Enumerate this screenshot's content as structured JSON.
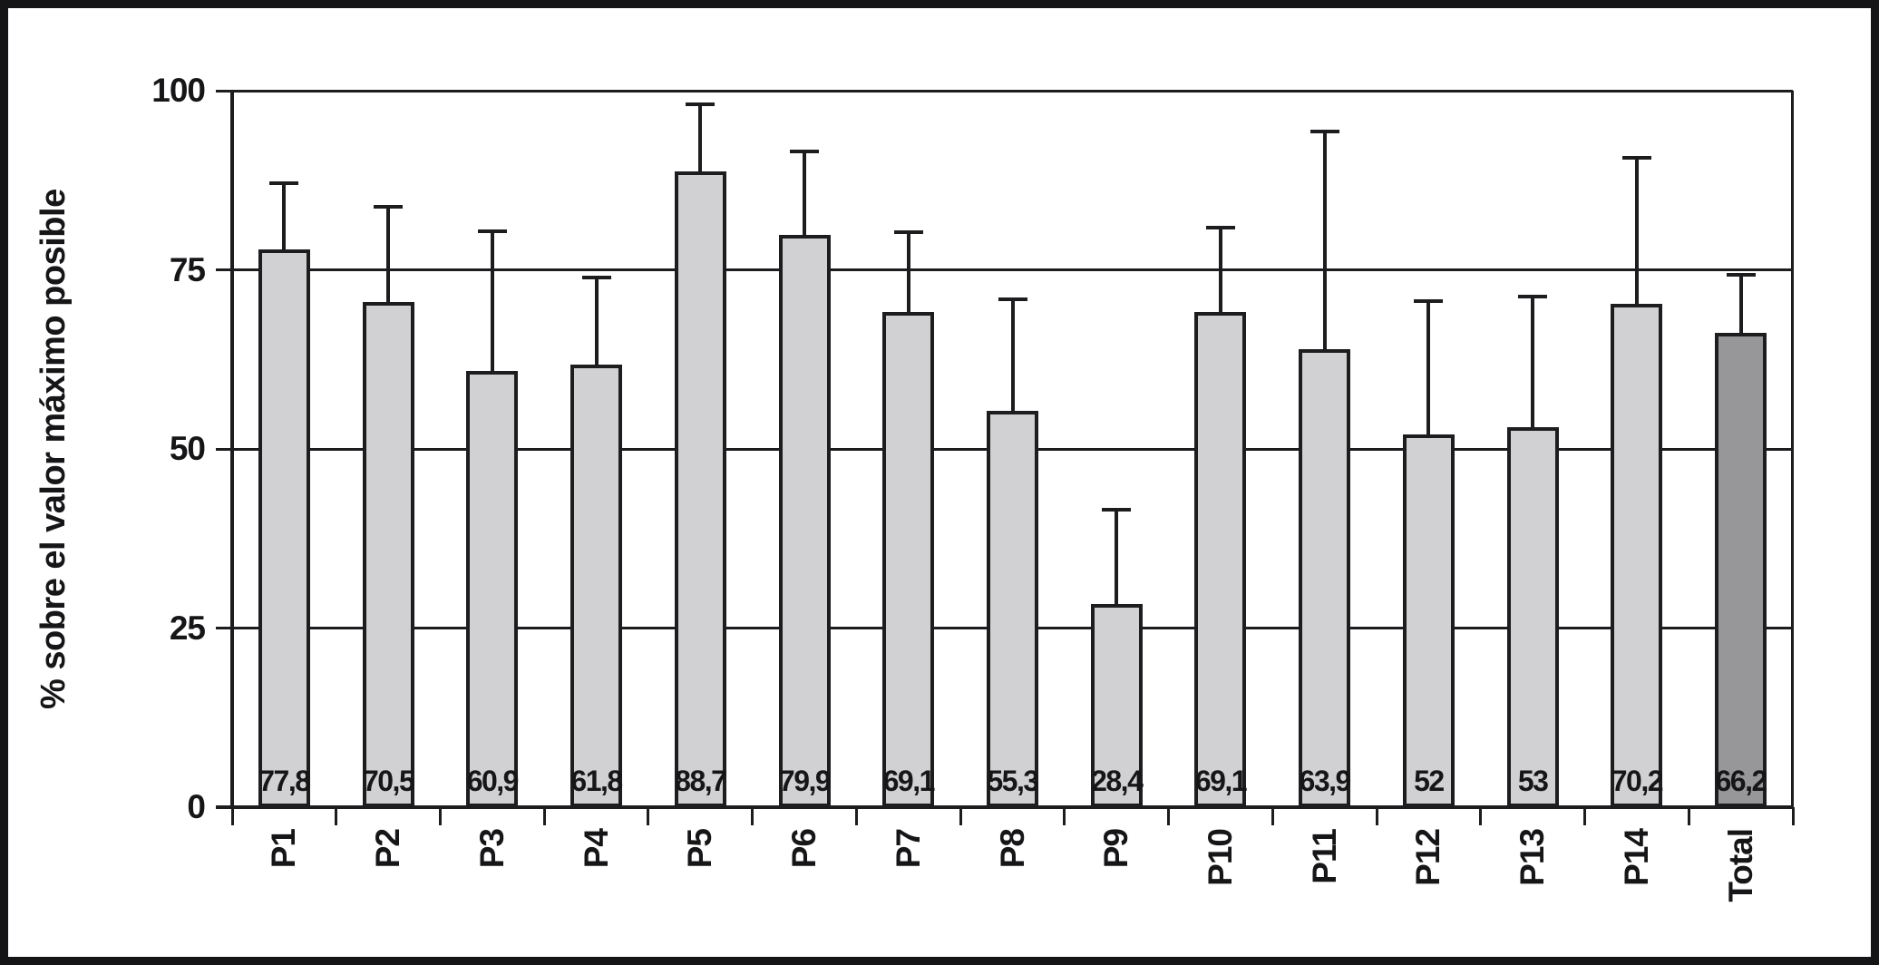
{
  "chart_data": {
    "type": "bar",
    "title": "",
    "xlabel": "",
    "ylabel": "% sobre el valor máximo posible",
    "ylim": [
      0,
      100
    ],
    "yticks": [
      0,
      25,
      50,
      75,
      100
    ],
    "ytick_labels": [
      "0",
      "25",
      "50",
      "75",
      "100"
    ],
    "grid": true,
    "legend": "none",
    "categories": [
      "P1",
      "P2",
      "P3",
      "P4",
      "P5",
      "P6",
      "P7",
      "P8",
      "P9",
      "P10",
      "P11",
      "P12",
      "P13",
      "P14",
      "Total"
    ],
    "values": [
      77.8,
      70.5,
      60.9,
      61.8,
      88.7,
      79.9,
      69.1,
      55.3,
      28.4,
      69.1,
      63.9,
      52,
      53,
      70.2,
      66.2
    ],
    "value_labels": [
      "77,8",
      "70,5",
      "60,9",
      "61,8",
      "88,7",
      "79,9",
      "69,1",
      "55,3",
      "28,4",
      "69,1",
      "63,9",
      "52",
      "53",
      "70,2",
      "66,2"
    ],
    "error_upper": [
      9.6,
      13.6,
      19.7,
      12.4,
      9.7,
      11.9,
      11.4,
      15.8,
      13.4,
      12.0,
      30.7,
      18.9,
      18.5,
      20.7,
      8.3
    ],
    "highlight_category": "Total",
    "bar_colors": {
      "default": "#d1d1d3",
      "total": "#97979a"
    },
    "line_color": "#1d1d1f",
    "background_color": "#ffffff"
  }
}
